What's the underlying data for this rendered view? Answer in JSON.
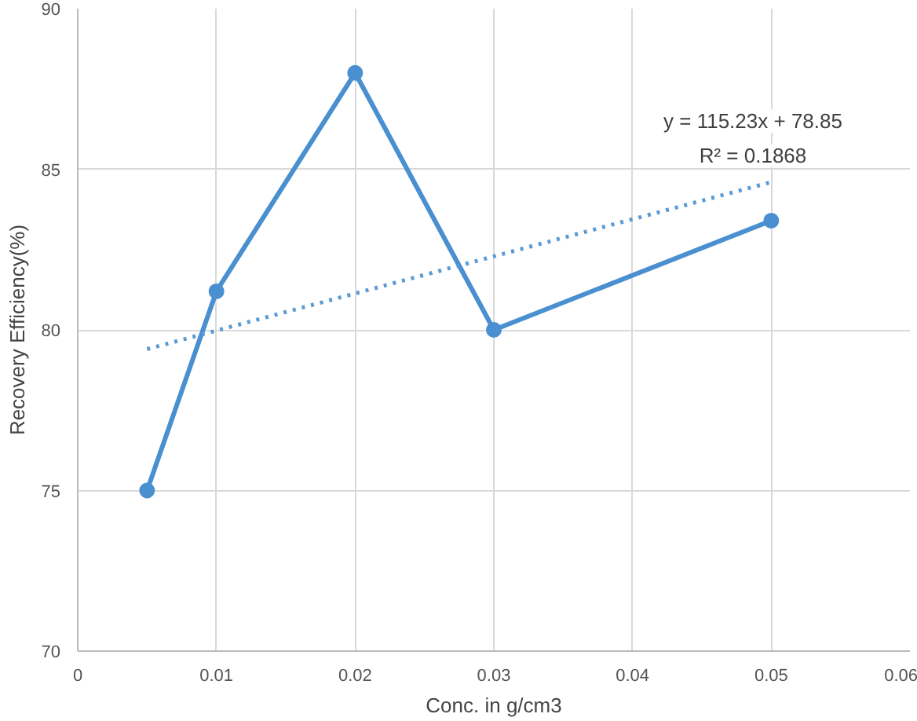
{
  "chart_data": {
    "type": "line",
    "xlabel": "Conc. in g/cm3",
    "ylabel": "Recovery Efficiency(%)",
    "xlim": [
      0,
      0.06
    ],
    "ylim": [
      70,
      90
    ],
    "xticks": [
      0,
      0.01,
      0.02,
      0.03,
      0.04,
      0.05,
      0.06
    ],
    "yticks": [
      70,
      75,
      80,
      85,
      90
    ],
    "grid": true,
    "series": [
      {
        "color": "#4a8fd0",
        "marker": "circle",
        "line_style": "solid",
        "x": [
          0.005,
          0.01,
          0.02,
          0.03,
          0.05
        ],
        "values": [
          75,
          81.2,
          88,
          80,
          83.4
        ]
      },
      {
        "type": "line",
        "color": "#5b9bd5",
        "marker": "none",
        "line_style": "dotted",
        "x": [
          0.005,
          0.05
        ],
        "values": [
          79.4,
          84.6
        ]
      }
    ],
    "annotations": [
      "y = 115.23x + 78.85",
      "R² = 0.1868"
    ]
  }
}
